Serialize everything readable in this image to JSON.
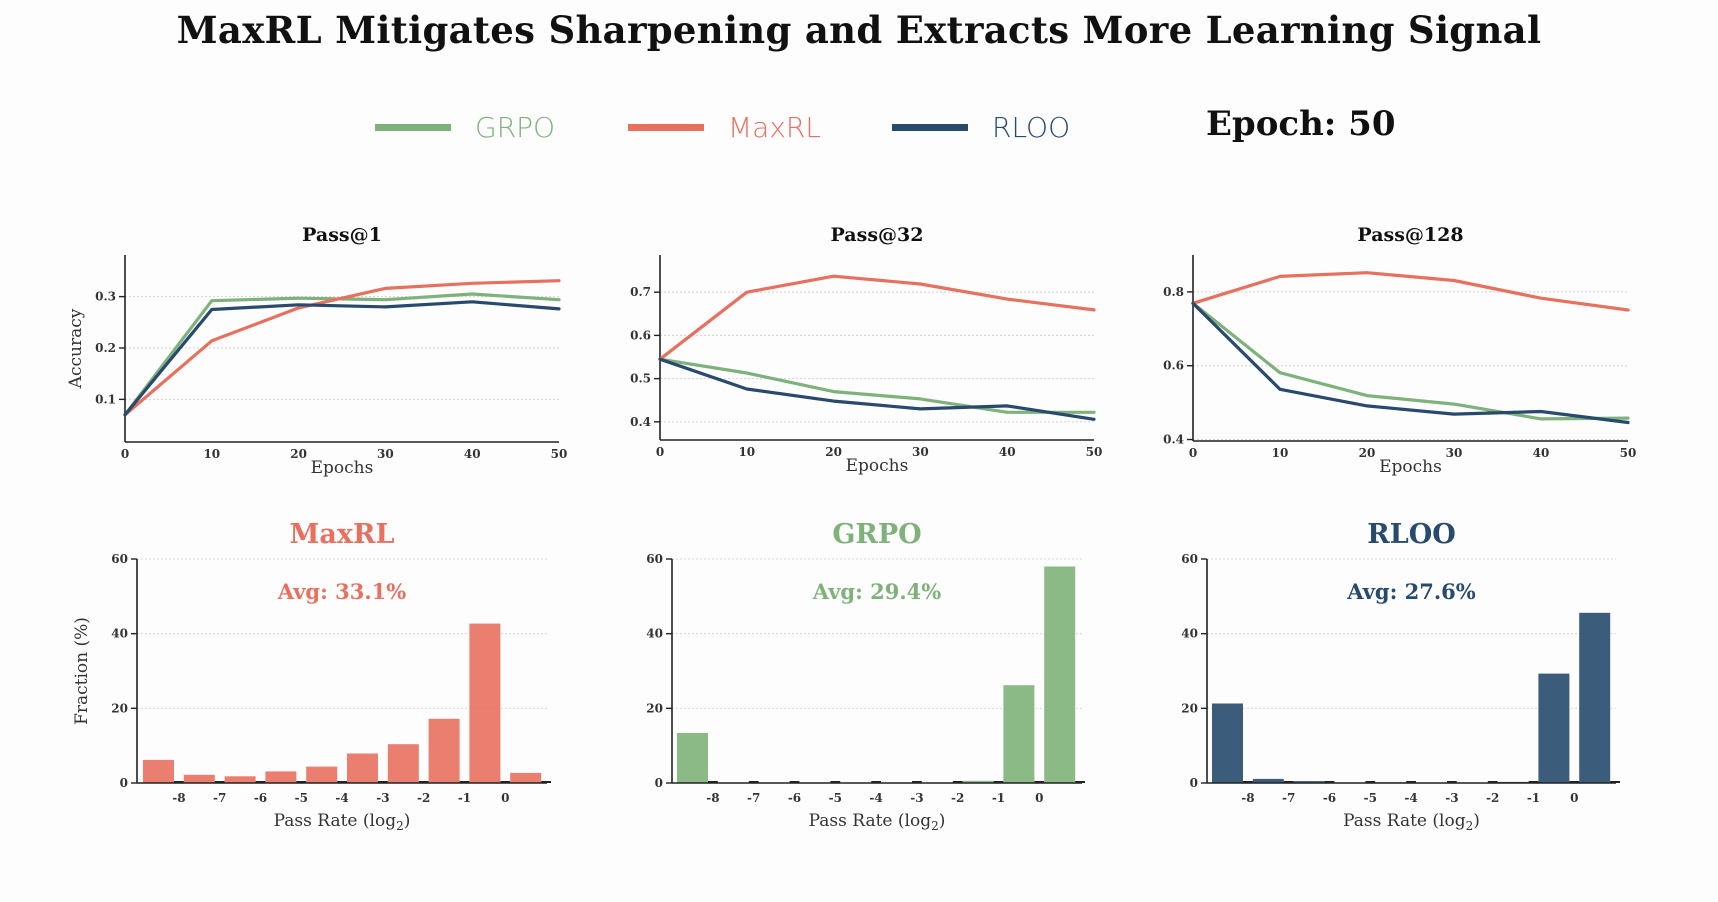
{
  "title": "MaxRL Mitigates Sharpening and Extracts More Learning Signal",
  "epoch_label": "Epoch: 50",
  "colors": {
    "GRPO": "#7fb27a",
    "MaxRL": "#e8705f",
    "RLOO": "#274a6e"
  },
  "legend": [
    {
      "name": "GRPO",
      "color": "#7fb27a"
    },
    {
      "name": "MaxRL",
      "color": "#e8705f"
    },
    {
      "name": "RLOO",
      "color": "#274a6e"
    }
  ],
  "chart_data": [
    {
      "type": "line",
      "title": "Pass@1",
      "xlabel": "Epochs",
      "ylabel": "Accuracy",
      "x": [
        0,
        10,
        20,
        30,
        40,
        50
      ],
      "xticks": [
        0,
        10,
        20,
        30,
        40,
        50
      ],
      "yticks": [
        0.1,
        0.2,
        0.3
      ],
      "ylim": [
        0.017,
        0.381
      ],
      "xlim": [
        0,
        50
      ],
      "grid": true,
      "series": [
        {
          "name": "GRPO",
          "values": [
            0.07,
            0.292,
            0.297,
            0.294,
            0.305,
            0.294
          ]
        },
        {
          "name": "MaxRL",
          "values": [
            0.07,
            0.214,
            0.278,
            0.316,
            0.326,
            0.331
          ]
        },
        {
          "name": "RLOO",
          "values": [
            0.07,
            0.275,
            0.284,
            0.28,
            0.29,
            0.276
          ]
        }
      ]
    },
    {
      "type": "line",
      "title": "Pass@32",
      "xlabel": "Epochs",
      "ylabel": "",
      "x": [
        0,
        10,
        20,
        30,
        40,
        50
      ],
      "xticks": [
        0,
        10,
        20,
        30,
        40,
        50
      ],
      "yticks": [
        0.4,
        0.5,
        0.6,
        0.7
      ],
      "ylim": [
        0.358,
        0.786
      ],
      "xlim": [
        0,
        50
      ],
      "grid": true,
      "series": [
        {
          "name": "GRPO",
          "values": [
            0.545,
            0.513,
            0.47,
            0.453,
            0.422,
            0.422
          ]
        },
        {
          "name": "MaxRL",
          "values": [
            0.545,
            0.7,
            0.737,
            0.719,
            0.684,
            0.659
          ]
        },
        {
          "name": "RLOO",
          "values": [
            0.545,
            0.476,
            0.448,
            0.43,
            0.437,
            0.406
          ]
        }
      ]
    },
    {
      "type": "line",
      "title": "Pass@128",
      "xlabel": "Epochs",
      "ylabel": "",
      "x": [
        0,
        10,
        20,
        30,
        40,
        50
      ],
      "xticks": [
        0,
        10,
        20,
        30,
        40,
        50
      ],
      "yticks": [
        0.4,
        0.6,
        0.8
      ],
      "ylim": [
        0.396,
        0.9
      ],
      "xlim": [
        0,
        50
      ],
      "grid": true,
      "series": [
        {
          "name": "GRPO",
          "values": [
            0.769,
            0.581,
            0.519,
            0.496,
            0.456,
            0.458
          ]
        },
        {
          "name": "MaxRL",
          "values": [
            0.769,
            0.842,
            0.852,
            0.831,
            0.783,
            0.751
          ]
        },
        {
          "name": "RLOO",
          "values": [
            0.769,
            0.536,
            0.491,
            0.469,
            0.476,
            0.446
          ]
        }
      ]
    },
    {
      "type": "bar",
      "title": "MaxRL",
      "annotation": "Avg: 33.1%",
      "method": "MaxRL",
      "xlabel": "Pass Rate (log2)",
      "ylabel": "Fraction (%)",
      "bin_edges_ticks": [
        "-8",
        "-7",
        "-6",
        "-5",
        "-4",
        "-3",
        "-2",
        "-1",
        "0"
      ],
      "values": [
        6.2,
        2.2,
        1.8,
        3.1,
        4.4,
        7.9,
        10.4,
        17.2,
        42.7,
        2.7
      ],
      "yticks": [
        0,
        20,
        40,
        60
      ],
      "ylim": [
        0,
        60
      ],
      "grid": true
    },
    {
      "type": "bar",
      "title": "GRPO",
      "annotation": "Avg: 29.4%",
      "method": "GRPO",
      "xlabel": "Pass Rate (log2)",
      "ylabel": "",
      "bin_edges_ticks": [
        "-8",
        "-7",
        "-6",
        "-5",
        "-4",
        "-3",
        "-2",
        "-1",
        "0"
      ],
      "values": [
        13.4,
        0.0,
        0.0,
        0.0,
        0.0,
        0.0,
        0.0,
        0.6,
        26.2,
        58.0
      ],
      "yticks": [
        0,
        20,
        40,
        60
      ],
      "ylim": [
        0,
        60
      ],
      "grid": true
    },
    {
      "type": "bar",
      "title": "RLOO",
      "annotation": "Avg: 27.6%",
      "method": "RLOO",
      "xlabel": "Pass Rate (log2)",
      "ylabel": "",
      "bin_edges_ticks": [
        "-8",
        "-7",
        "-6",
        "-5",
        "-4",
        "-3",
        "-2",
        "-1",
        "0"
      ],
      "values": [
        21.3,
        1.1,
        0.5,
        0.0,
        0.2,
        0.0,
        0.0,
        0.3,
        29.3,
        45.6
      ],
      "yticks": [
        0,
        20,
        40,
        60
      ],
      "ylim": [
        0,
        60
      ],
      "grid": true
    }
  ]
}
